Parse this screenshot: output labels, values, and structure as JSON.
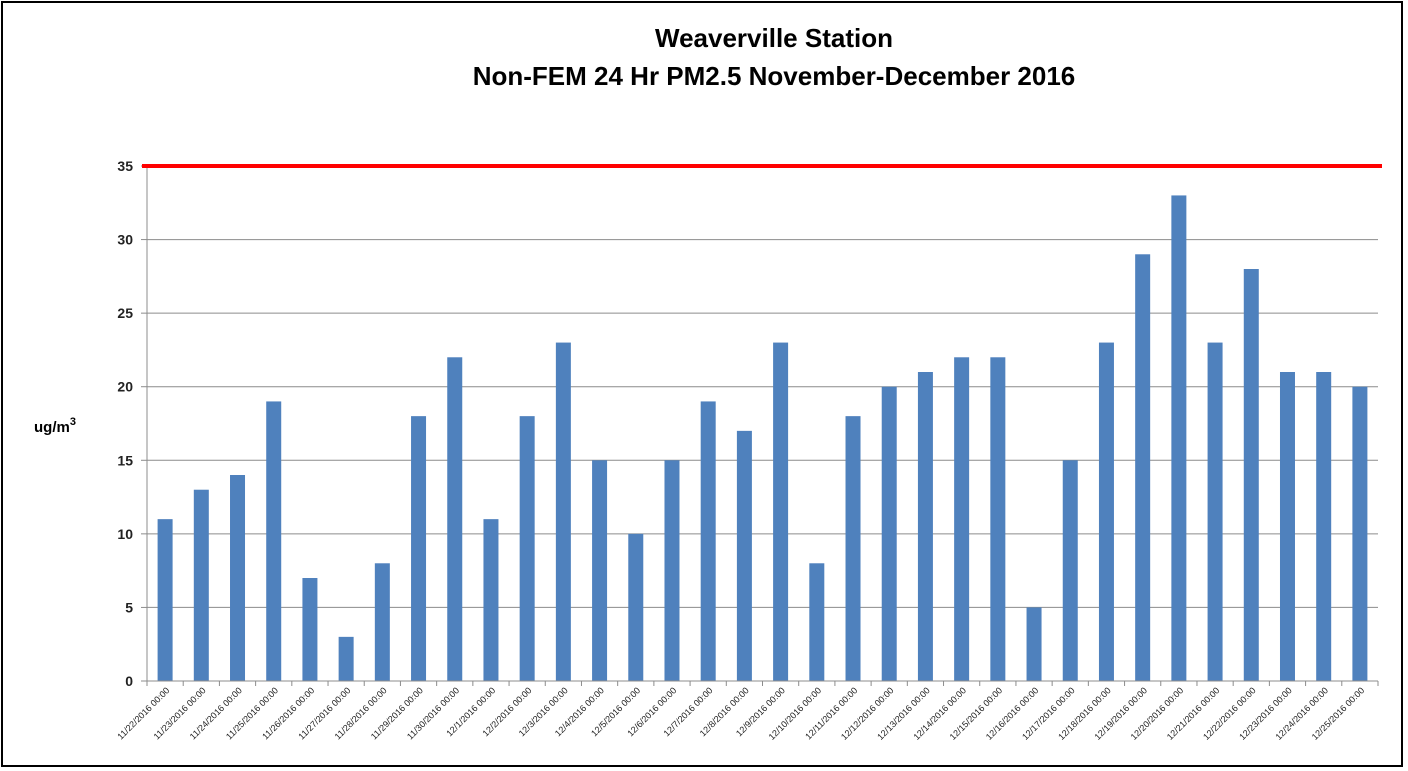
{
  "chart_data": {
    "type": "bar",
    "title": "Weaverville Station",
    "subtitle": "Non-FEM 24 Hr PM2.5 November-December 2016",
    "ylabel_main": "ug/m",
    "ylabel_sup": "3",
    "xlabel": "",
    "ylim": [
      0,
      35
    ],
    "yticks": [
      "0",
      "5",
      "10",
      "15",
      "20",
      "25",
      "30",
      "35"
    ],
    "grid": true,
    "bar_color": "#4f81bd",
    "threshold": {
      "value": 35,
      "color": "#ff0000"
    },
    "categories": [
      "11/22/2016 00:00",
      "11/23/2016 00:00",
      "11/24/2016 00:00",
      "11/25/2016 00:00",
      "11/26/2016 00:00",
      "11/27/2016 00:00",
      "11/28/2016 00:00",
      "11/29/2016 00:00",
      "11/30/2016 00:00",
      "12/1/2016 00:00",
      "12/2/2016 00:00",
      "12/3/2016 00:00",
      "12/4/2016 00:00",
      "12/5/2016 00:00",
      "12/6/2016 00:00",
      "12/7/2016 00:00",
      "12/8/2016 00:00",
      "12/9/2016 00:00",
      "12/10/2016 00:00",
      "12/11/2016 00:00",
      "12/12/2016 00:00",
      "12/13/2016 00:00",
      "12/14/2016 00:00",
      "12/15/2016 00:00",
      "12/16/2016 00:00",
      "12/17/2016 00:00",
      "12/18/2016 00:00",
      "12/19/2016 00:00",
      "12/20/2016 00:00",
      "12/21/2016 00:00",
      "12/22/2016 00:00",
      "12/23/2016 00:00",
      "12/24/2016 00:00",
      "12/25/2016 00:00"
    ],
    "values": [
      11,
      13,
      14,
      19,
      7,
      3,
      8,
      18,
      22,
      11,
      18,
      23,
      15,
      10,
      15,
      19,
      17,
      23,
      8,
      18,
      20,
      21,
      22,
      22,
      5,
      15,
      23,
      29,
      33,
      23,
      28,
      21,
      21,
      20
    ]
  }
}
